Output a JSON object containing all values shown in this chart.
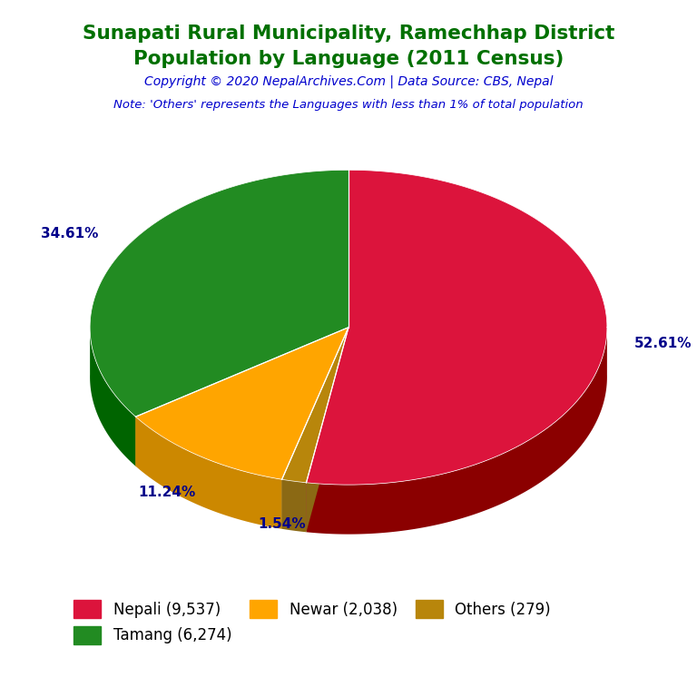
{
  "title_line1": "Sunapati Rural Municipality, Ramechhap District",
  "title_line2": "Population by Language (2011 Census)",
  "title_color": "#007000",
  "copyright_text": "Copyright © 2020 NepalArchives.Com | Data Source: CBS, Nepal",
  "copyright_color": "#0000cd",
  "note_text": "Note: 'Others' represents the Languages with less than 1% of total population",
  "note_color": "#0000cd",
  "labels": [
    "Nepali (9,537)",
    "Tamang (6,274)",
    "Newar (2,038)",
    "Others (279)"
  ],
  "values": [
    9537,
    6274,
    2038,
    279
  ],
  "percentages": [
    "52.61%",
    "34.61%",
    "11.24%",
    "1.54%"
  ],
  "colors": [
    "#dc143c",
    "#228b22",
    "#ffa500",
    "#b8860b"
  ],
  "shadow_colors": [
    "#8b0000",
    "#006400",
    "#cc8800",
    "#8b6914"
  ],
  "background_color": "#ffffff",
  "legend_text_color": "#000000",
  "pct_label_color": "#00008b",
  "startangle": 90,
  "depth": 0.22
}
